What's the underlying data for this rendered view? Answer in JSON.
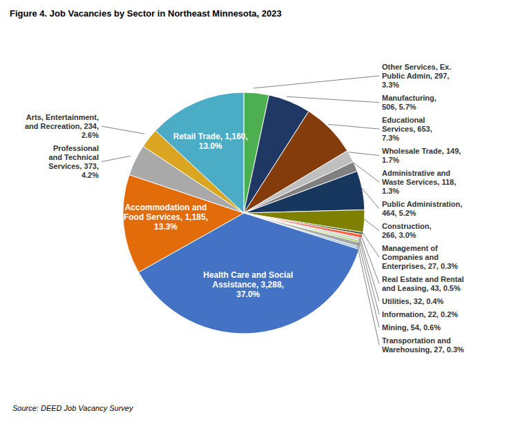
{
  "chart_data": {
    "type": "pie",
    "title": "Figure 4. Job Vacancies by Sector in Northeast Minnesota, 2023",
    "source": "Source: DEED Job Vacancy Survey",
    "categories": [
      "Other Services, Ex.\nPublic Admin, 297,\n3.3%",
      "Manufacturing,\n506, 5.7%",
      "Educational\nServices, 653,\n7.3%",
      "Wholesale Trade, 149,\n1.7%",
      "Administrative and\nWaste Services, 118,\n1.3%",
      "Public Administration,\n464, 5.2%",
      "Construction,\n266, 3.0%",
      "Management of\nCompanies and\nEnterprises, 27, 0.3%",
      "Real Estate and Rental\nand Leasing, 43, 0.5%",
      "Utilities, 32, 0.4%",
      "Information, 22, 0.2%",
      "Mining, 54, 0.6%",
      "Transportation and\nWarehousing, 27, 0.3%",
      "Health Care and Social\nAssistance, 3,288,\n37.0%",
      "Accommodation and\nFood Services, 1,185,\n13.3%",
      "Professional\nand Technical\nServices, 373,\n4.2%",
      "Arts, Entertainment,\nand Recreation, 234,\n2.6%",
      "Retail Trade, 1,160,\n13.0%"
    ],
    "values": [
      297,
      506,
      653,
      149,
      118,
      464,
      266,
      27,
      43,
      32,
      22,
      54,
      27,
      3288,
      1185,
      373,
      234,
      1160
    ],
    "colors": [
      "#4CAF50",
      "#1F3864",
      "#843C0C",
      "#BFBFBF",
      "#808080",
      "#17375E",
      "#7F7F00",
      "#375623",
      "#FF6347",
      "#D3D3D3",
      "#92D050",
      "#A6A6A6",
      "#9DC3E6",
      "#4472C4",
      "#E26B0A",
      "#A9A9A9",
      "#DAA520",
      "#4BACC6"
    ]
  }
}
